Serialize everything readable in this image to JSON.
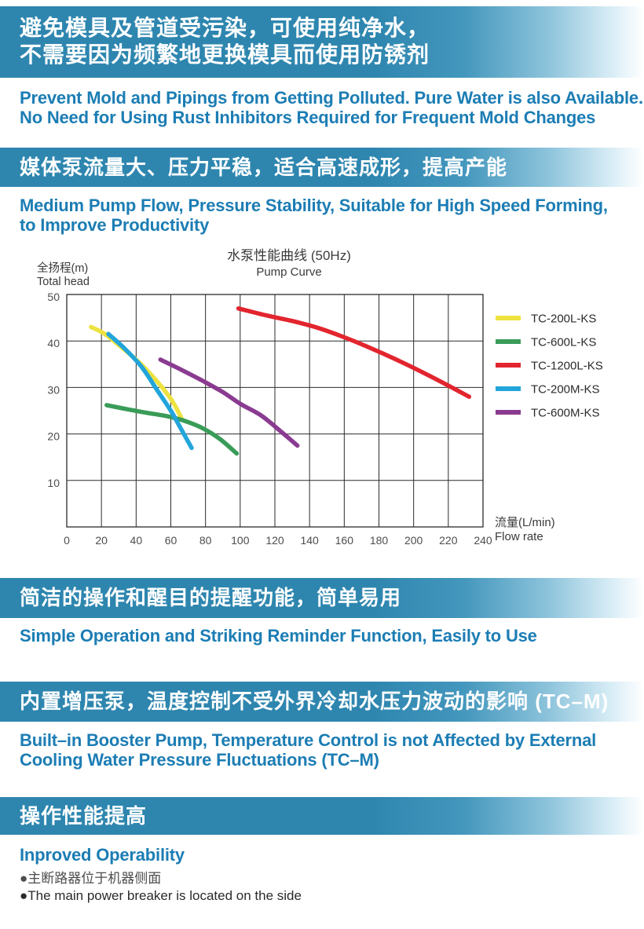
{
  "colors": {
    "banner_blue": "#2E86AF",
    "heading_blue": "#1C7DB4",
    "grid_line": "#2b2b2b"
  },
  "sections": [
    {
      "zh1": "避免模具及管道受污染，可使用纯净水，",
      "zh2": "不需要因为频繁地更换模具而使用防锈剂",
      "en1": "Prevent Mold and Pipings from Getting Polluted. Pure Water is also Available.",
      "en2": "No Need for Using Rust Inhibitors Required for Frequent Mold Changes"
    },
    {
      "zh1": "媒体泵流量大、压力平稳，适合高速成形，提高产能",
      "en1": "Medium Pump Flow, Pressure Stability, Suitable for High Speed Forming,",
      "en2": "to Improve Productivity"
    },
    {
      "zh1": "简洁的操作和醒目的提醒功能，简单易用",
      "en1": "Simple Operation and Striking Reminder Function, Easily to Use"
    },
    {
      "zh1": "内置增压泵，温度控制不受外界冷却水压力波动的影响 (TC–M)",
      "en1": "Built–in Booster Pump, Temperature Control is not Affected by External",
      "en2": "Cooling Water Pressure Fluctuations (TC–M)"
    },
    {
      "zh1": "操作性能提高",
      "en1": "Inproved Operability",
      "bullet_zh": "●主断路器位于机器侧面",
      "bullet_en": "●The main power breaker is located on the side"
    }
  ],
  "chart_data": {
    "type": "line",
    "title_zh": "水泵性能曲线 (50Hz)",
    "title_en": "Pump Curve",
    "ylabel_zh": "全扬程(m)",
    "ylabel_en": "Total head",
    "xlabel_zh": "流量(L/min)",
    "xlabel_en": "Flow rate",
    "xlim": [
      0,
      240
    ],
    "ylim": [
      0,
      50
    ],
    "xticks": [
      0,
      20,
      40,
      60,
      80,
      100,
      120,
      140,
      160,
      180,
      200,
      220,
      240
    ],
    "yticks": [
      10,
      20,
      30,
      40,
      50
    ],
    "grid": true,
    "legend_position": "right",
    "series": [
      {
        "name": "TC-200L-KS",
        "color": "#EDE23F",
        "points": [
          [
            14,
            43
          ],
          [
            22,
            41.5
          ],
          [
            32,
            38.5
          ],
          [
            40,
            36
          ],
          [
            48,
            33
          ],
          [
            55,
            30
          ],
          [
            61,
            27
          ],
          [
            66,
            23.5
          ]
        ]
      },
      {
        "name": "TC-600L-KS",
        "color": "#399C58",
        "points": [
          [
            23,
            26.2
          ],
          [
            35,
            25.3
          ],
          [
            47,
            24.5
          ],
          [
            58,
            23.8
          ],
          [
            68,
            22.8
          ],
          [
            78,
            21.3
          ],
          [
            88,
            19
          ],
          [
            98,
            15.8
          ]
        ]
      },
      {
        "name": "TC-1200L-KS",
        "color": "#E2252E",
        "points": [
          [
            99,
            47
          ],
          [
            115,
            45.5
          ],
          [
            130,
            44.3
          ],
          [
            145,
            42.8
          ],
          [
            160,
            40.8
          ],
          [
            175,
            38.5
          ],
          [
            190,
            36
          ],
          [
            205,
            33.3
          ],
          [
            218,
            30.8
          ],
          [
            232,
            28
          ]
        ]
      },
      {
        "name": "TC-200M-KS",
        "color": "#22A5DA",
        "points": [
          [
            24,
            41.5
          ],
          [
            33,
            38.5
          ],
          [
            43,
            34.5
          ],
          [
            52,
            29.5
          ],
          [
            60,
            25
          ],
          [
            66,
            21
          ],
          [
            72,
            17
          ]
        ]
      },
      {
        "name": "TC-600M-KS",
        "color": "#8A3B91",
        "points": [
          [
            54,
            36
          ],
          [
            65,
            34
          ],
          [
            78,
            31.5
          ],
          [
            90,
            29
          ],
          [
            100,
            26.5
          ],
          [
            112,
            24
          ],
          [
            122,
            21
          ],
          [
            133,
            17.5
          ]
        ]
      }
    ]
  }
}
